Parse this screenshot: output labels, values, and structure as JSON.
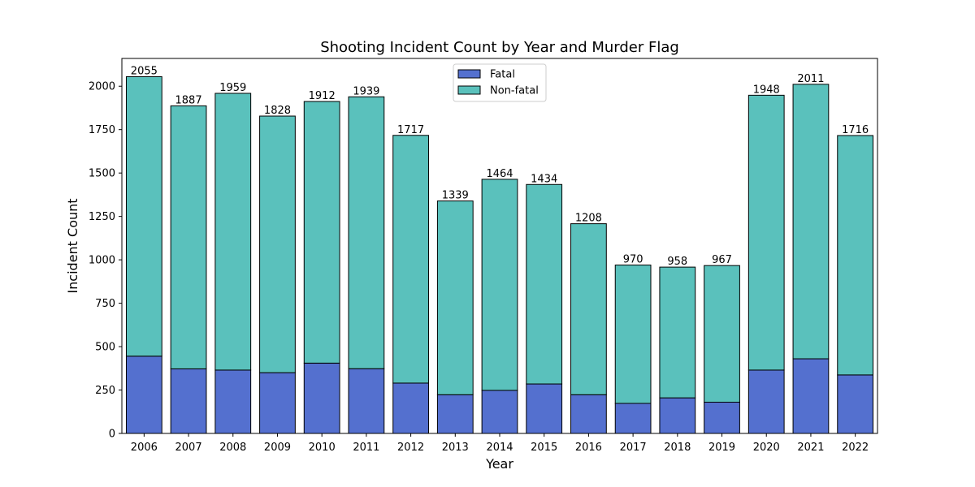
{
  "chart_data": {
    "type": "bar",
    "stacked": true,
    "title": "Shooting Incident Count by Year and Murder Flag",
    "xlabel": "Year",
    "ylabel": "Incident Count",
    "categories": [
      "2006",
      "2007",
      "2008",
      "2009",
      "2010",
      "2011",
      "2012",
      "2013",
      "2014",
      "2015",
      "2016",
      "2017",
      "2018",
      "2019",
      "2020",
      "2021",
      "2022"
    ],
    "series": [
      {
        "name": "Fatal",
        "color": "#5470cf",
        "values": [
          445,
          372,
          365,
          350,
          405,
          373,
          290,
          223,
          248,
          285,
          223,
          173,
          205,
          180,
          365,
          430,
          337
        ]
      },
      {
        "name": "Non-fatal",
        "color": "#5ac1bc",
        "values": [
          1610,
          1515,
          1594,
          1478,
          1507,
          1566,
          1427,
          1116,
          1216,
          1149,
          985,
          797,
          753,
          787,
          1583,
          1581,
          1379
        ]
      }
    ],
    "totals": [
      2055,
      1887,
      1959,
      1828,
      1912,
      1939,
      1717,
      1339,
      1464,
      1434,
      1208,
      970,
      958,
      967,
      1948,
      2011,
      1716
    ],
    "yticks": [
      0,
      250,
      500,
      750,
      1000,
      1250,
      1500,
      1750,
      2000
    ],
    "ylim": [
      0,
      2160
    ],
    "grid": false,
    "legend_position": "top-center"
  }
}
